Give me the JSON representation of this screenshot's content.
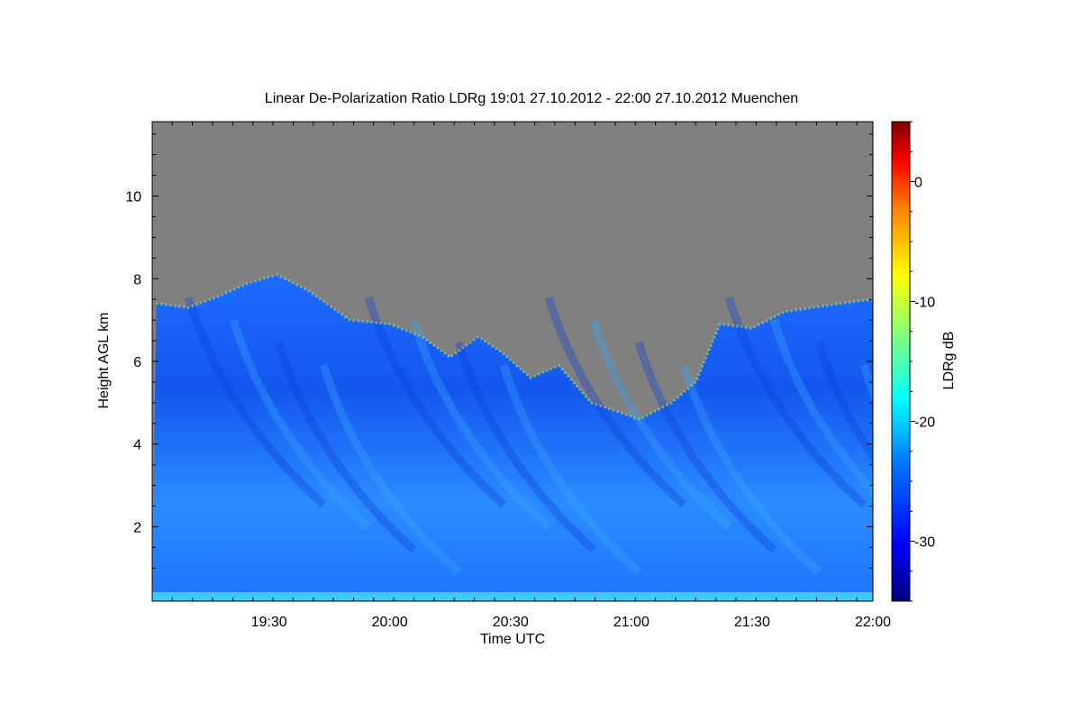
{
  "chart_data": {
    "type": "heatmap",
    "title": "Linear De-Polarization Ratio LDRg   19:01 27.10.2012 - 22:00 27.10.2012 Muenchen",
    "xlabel": "Time UTC",
    "ylabel": "Height AGL km",
    "x_range": [
      "19:01",
      "22:00"
    ],
    "y_range_km": [
      0.2,
      11.8
    ],
    "x_ticks": [
      "19:30",
      "20:00",
      "20:30",
      "21:00",
      "21:30",
      "22:00"
    ],
    "y_ticks": [
      "2",
      "4",
      "6",
      "8",
      "10"
    ],
    "colorbar": {
      "label": "LDRg dB",
      "range": [
        -35,
        5
      ],
      "ticks": [
        "0",
        "-10",
        "-20",
        "-30"
      ]
    },
    "no_signal_color": "#808080",
    "cloud_top_km": [
      {
        "t": "19:02",
        "h": 7.4
      },
      {
        "t": "19:10",
        "h": 7.3
      },
      {
        "t": "19:18",
        "h": 7.6
      },
      {
        "t": "19:25",
        "h": 7.9
      },
      {
        "t": "19:32",
        "h": 8.1
      },
      {
        "t": "19:40",
        "h": 7.7
      },
      {
        "t": "19:50",
        "h": 7.0
      },
      {
        "t": "20:00",
        "h": 6.9
      },
      {
        "t": "20:08",
        "h": 6.6
      },
      {
        "t": "20:15",
        "h": 6.1
      },
      {
        "t": "20:22",
        "h": 6.6
      },
      {
        "t": "20:28",
        "h": 6.2
      },
      {
        "t": "20:35",
        "h": 5.6
      },
      {
        "t": "20:42",
        "h": 5.9
      },
      {
        "t": "20:50",
        "h": 5.0
      },
      {
        "t": "20:56",
        "h": 4.8
      },
      {
        "t": "21:02",
        "h": 4.6
      },
      {
        "t": "21:10",
        "h": 5.0
      },
      {
        "t": "21:16",
        "h": 5.5
      },
      {
        "t": "21:22",
        "h": 6.9
      },
      {
        "t": "21:30",
        "h": 6.8
      },
      {
        "t": "21:38",
        "h": 7.2
      },
      {
        "t": "21:45",
        "h": 7.3
      },
      {
        "t": "21:52",
        "h": 7.4
      },
      {
        "t": "22:00",
        "h": 7.5
      }
    ]
  }
}
